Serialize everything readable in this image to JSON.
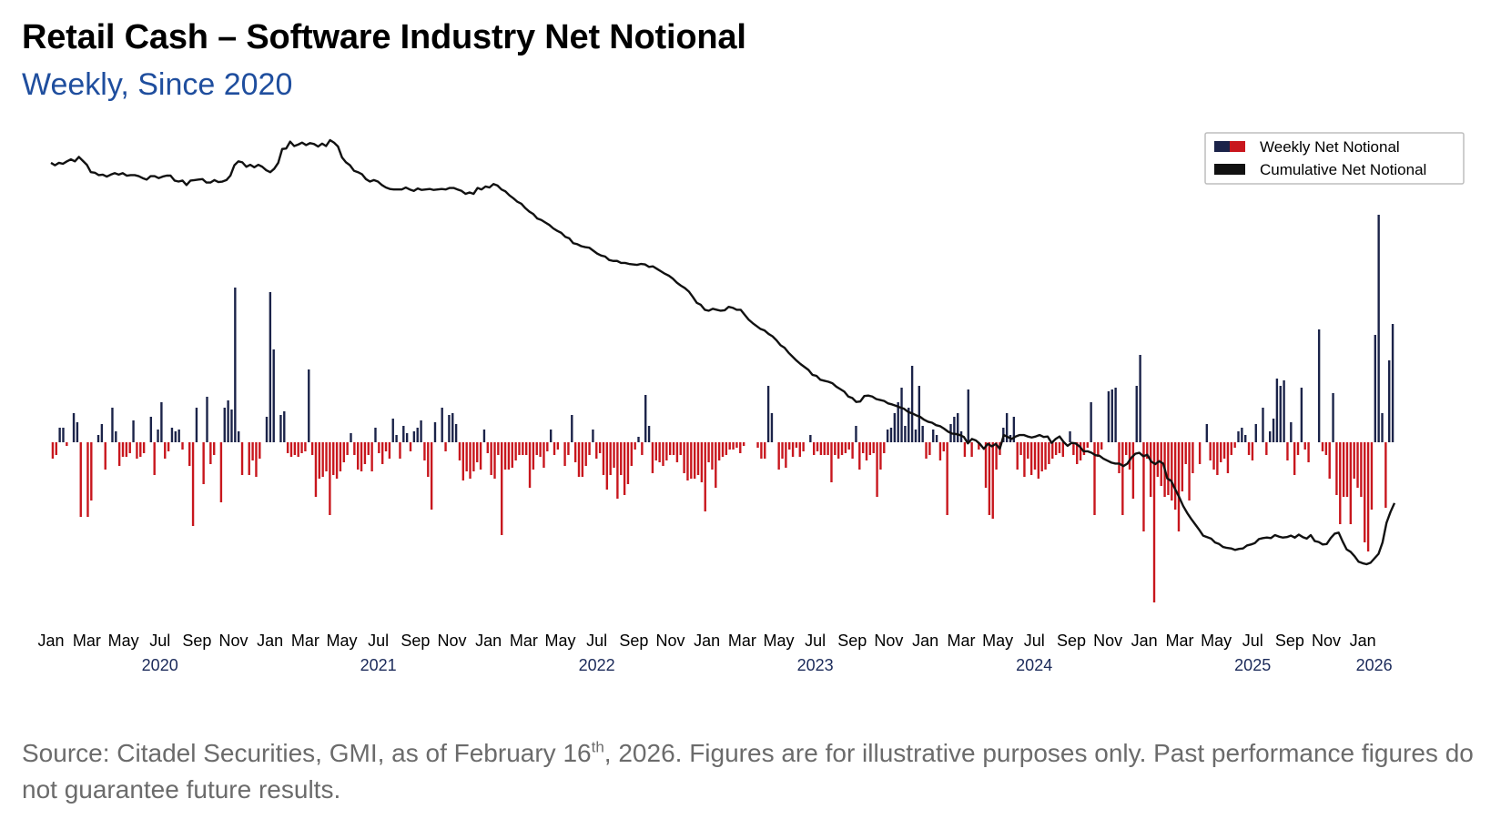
{
  "title": "Retail Cash – Software Industry Net Notional",
  "subtitle": "Weekly, Since 2020",
  "source": {
    "part1": "Source: Citadel Securities, GMI, as of February 16",
    "superscript": "th",
    "part2": ", 2026. Figures are for illustrative purposes only. Past performance figures do not guarantee future results."
  },
  "colors": {
    "positive_bar": "#1b2349",
    "negative_bar": "#c8161d",
    "cumulative_line": "#111111",
    "subtitle": "#1f4e9e"
  },
  "chart_data": {
    "type": "bar",
    "overlay": "line",
    "x_range": [
      "2020-01-01",
      "2026-02-23"
    ],
    "x_tick_labels": [
      {
        "date": "2020-01-01",
        "label": "Jan"
      },
      {
        "date": "2020-03-01",
        "label": "Mar"
      },
      {
        "date": "2020-05-01",
        "label": "May"
      },
      {
        "date": "2020-07-01",
        "label": "Jul"
      },
      {
        "date": "2020-09-01",
        "label": "Sep"
      },
      {
        "date": "2020-11-01",
        "label": "Nov"
      },
      {
        "date": "2021-01-01",
        "label": "Jan"
      },
      {
        "date": "2021-03-01",
        "label": "Mar"
      },
      {
        "date": "2021-05-01",
        "label": "May"
      },
      {
        "date": "2021-07-01",
        "label": "Jul"
      },
      {
        "date": "2021-09-01",
        "label": "Sep"
      },
      {
        "date": "2021-11-01",
        "label": "Nov"
      },
      {
        "date": "2022-01-01",
        "label": "Jan"
      },
      {
        "date": "2022-03-01",
        "label": "Mar"
      },
      {
        "date": "2022-05-01",
        "label": "May"
      },
      {
        "date": "2022-07-01",
        "label": "Jul"
      },
      {
        "date": "2022-09-01",
        "label": "Sep"
      },
      {
        "date": "2022-11-01",
        "label": "Nov"
      },
      {
        "date": "2023-01-01",
        "label": "Jan"
      },
      {
        "date": "2023-03-01",
        "label": "Mar"
      },
      {
        "date": "2023-05-01",
        "label": "May"
      },
      {
        "date": "2023-07-01",
        "label": "Jul"
      },
      {
        "date": "2023-09-01",
        "label": "Sep"
      },
      {
        "date": "2023-11-01",
        "label": "Nov"
      },
      {
        "date": "2024-01-01",
        "label": "Jan"
      },
      {
        "date": "2024-03-01",
        "label": "Mar"
      },
      {
        "date": "2024-05-01",
        "label": "May"
      },
      {
        "date": "2024-07-01",
        "label": "Jul"
      },
      {
        "date": "2024-09-01",
        "label": "Sep"
      },
      {
        "date": "2024-11-01",
        "label": "Nov"
      },
      {
        "date": "2025-01-01",
        "label": "Jan"
      },
      {
        "date": "2025-03-01",
        "label": "Mar"
      },
      {
        "date": "2025-05-01",
        "label": "May"
      },
      {
        "date": "2025-07-01",
        "label": "Jul"
      },
      {
        "date": "2025-09-01",
        "label": "Sep"
      },
      {
        "date": "2025-11-01",
        "label": "Nov"
      },
      {
        "date": "2026-01-01",
        "label": "Jan"
      }
    ],
    "year_labels": [
      {
        "date": "2020-07-01",
        "label": "2020"
      },
      {
        "date": "2021-07-01",
        "label": "2021"
      },
      {
        "date": "2022-07-01",
        "label": "2022"
      },
      {
        "date": "2023-07-01",
        "label": "2023"
      },
      {
        "date": "2024-07-01",
        "label": "2024"
      },
      {
        "date": "2025-07-01",
        "label": "2025"
      },
      {
        "date": "2026-01-20",
        "label": "2026"
      }
    ],
    "y_axis_shown": false,
    "grid": false,
    "legend_position": "top-right",
    "series": [
      {
        "name": "Weekly Net Notional",
        "type": "bar",
        "values": [
          -18,
          -14,
          16,
          16,
          -4,
          0,
          32,
          22,
          -82,
          0,
          -82,
          -64,
          0,
          8,
          20,
          -30,
          0,
          38,
          12,
          -26,
          -16,
          -16,
          -12,
          24,
          -18,
          -16,
          -12,
          0,
          28,
          -36,
          14,
          44,
          -18,
          -10,
          16,
          12,
          14,
          -8,
          0,
          -26,
          -92,
          38,
          0,
          -46,
          50,
          -24,
          -14,
          0,
          -66,
          38,
          46,
          36,
          170,
          12,
          -36,
          0,
          -36,
          -20,
          -38,
          -18,
          0,
          28,
          165,
          102,
          0,
          30,
          34,
          -12,
          -16,
          -14,
          -16,
          -12,
          -10,
          80,
          -14,
          -60,
          -40,
          -38,
          -32,
          -80,
          -36,
          -40,
          -32,
          -22,
          -14,
          10,
          -14,
          -30,
          -32,
          -24,
          -14,
          -32,
          16,
          -12,
          -24,
          -10,
          -18,
          26,
          8,
          -18,
          18,
          10,
          -10,
          12,
          16,
          24,
          -20,
          -38,
          -74,
          22,
          0,
          38,
          -10,
          30,
          32,
          20,
          -20,
          -42,
          -32,
          -40,
          -32,
          -22,
          -30,
          14,
          -12,
          -36,
          -40,
          -14,
          -102,
          -30,
          -30,
          -28,
          -20,
          -14,
          -14,
          -14,
          -50,
          -30,
          -14,
          -16,
          -28,
          -10,
          14,
          -14,
          -8,
          0,
          -26,
          -14,
          30,
          -22,
          -38,
          -38,
          -26,
          -14,
          14,
          -18,
          -12,
          -36,
          -52,
          -36,
          -28,
          -62,
          -36,
          -58,
          -46,
          -26,
          -8,
          6,
          -14,
          52,
          18,
          -34,
          -20,
          -22,
          -26,
          -20,
          -14,
          -14,
          -22,
          -14,
          -34,
          -42,
          -40,
          -40,
          -36,
          -44,
          -76,
          -22,
          -30,
          -50,
          -20,
          -16,
          -14,
          -8,
          -8,
          -6,
          -12,
          -4,
          0,
          0,
          0,
          -6,
          -18,
          -18,
          62,
          32,
          0,
          -30,
          -18,
          -28,
          -8,
          -16,
          -6,
          -16,
          -10,
          0,
          8,
          -14,
          -10,
          -14,
          -14,
          -14,
          -44,
          -14,
          -18,
          -14,
          -12,
          -8,
          -18,
          18,
          -30,
          -12,
          -20,
          -14,
          -12,
          -60,
          -30,
          -12,
          14,
          16,
          32,
          44,
          60,
          18,
          38,
          84,
          14,
          62,
          18,
          -18,
          -14,
          14,
          8,
          -20,
          -10,
          -80,
          20,
          28,
          32,
          12,
          -16,
          58,
          -16,
          0,
          -8,
          0,
          -50,
          -80,
          -84,
          -30,
          -14,
          16,
          32,
          8,
          28,
          -30,
          -14,
          -38,
          -18,
          -36,
          -30,
          -40,
          -32,
          -30,
          -24,
          -18,
          -14,
          -12,
          -16,
          0,
          12,
          -14,
          -24,
          -20,
          -14,
          -6,
          44,
          -80,
          -16,
          -8,
          0,
          56,
          58,
          60,
          -34,
          -80,
          -14,
          -30,
          -62,
          62,
          96,
          -98,
          -18,
          -60,
          -176,
          -38,
          -48,
          -60,
          -58,
          -64,
          -74,
          -98,
          -54,
          -24,
          -64,
          -34,
          0,
          -24,
          0,
          20,
          -20,
          -30,
          -36,
          -22,
          -18,
          -34,
          -14,
          -6,
          12,
          16,
          8,
          -14,
          -20,
          20,
          0,
          38,
          -14,
          12,
          26,
          70,
          62,
          68,
          -20,
          22,
          -36,
          -14,
          60,
          -8,
          -22,
          0,
          0,
          124,
          -10,
          -14,
          -40,
          54,
          -58,
          -90,
          -60,
          -60,
          -90,
          -40,
          -50,
          -60,
          -110,
          -120,
          -74,
          118,
          250,
          32,
          -72,
          90,
          130
        ]
      },
      {
        "name": "Cumulative Net Notional",
        "type": "line",
        "values": [
          1000,
          995,
          1000,
          998,
          1003,
          1007,
          1003,
          1012,
          1004,
          996,
          981,
          980,
          975,
          976,
          972,
          976,
          979,
          976,
          979,
          974,
          975,
          975,
          973,
          969,
          966,
          973,
          973,
          969,
          972,
          974,
          974,
          964,
          962,
          964,
          955,
          964,
          965,
          966,
          967,
          960,
          960,
          965,
          961,
          962,
          965,
          974,
          995,
          1003,
          1001,
          992,
          996,
          991,
          996,
          992,
          985,
          981,
          988,
          1000,
          1028,
          1029,
          1043,
          1034,
          1037,
          1041,
          1036,
          1040,
          1038,
          1033,
          1039,
          1034,
          1046,
          1041,
          1033,
          1011,
          1001,
          995,
          984,
          981,
          977,
          967,
          962,
          965,
          962,
          955,
          950,
          947,
          946,
          946,
          946,
          950,
          946,
          943,
          948,
          945,
          946,
          947,
          945,
          946,
          947,
          946,
          949,
          949,
          946,
          943,
          937,
          940,
          937,
          949,
          946,
          952,
          950,
          957,
          954,
          946,
          942,
          934,
          928,
          921,
          917,
          908,
          901,
          896,
          887,
          884,
          879,
          874,
          867,
          862,
          858,
          850,
          847,
          837,
          835,
          831,
          829,
          828,
          822,
          816,
          812,
          810,
          803,
          801,
          801,
          797,
          797,
          795,
          794,
          793,
          795,
          794,
          789,
          790,
          785,
          780,
          775,
          771,
          765,
          757,
          751,
          746,
          739,
          728,
          716,
          712,
          702,
          700,
          704,
          702,
          700,
          701,
          708,
          706,
          702,
          702,
          692,
          682,
          675,
          669,
          663,
          660,
          653,
          648,
          640,
          630,
          625,
          615,
          607,
          599,
          592,
          586,
          580,
          570,
          568,
          560,
          558,
          556,
          553,
          546,
          541,
          536,
          526,
          523,
          515,
          516,
          527,
          528,
          526,
          521,
          519,
          517,
          512,
          510,
          507,
          504,
          501,
          495,
          492,
          488,
          485,
          479,
          475,
          473,
          468,
          466,
          461,
          455,
          451,
          450,
          448,
          444,
          431,
          440,
          437,
          430,
          420,
          430,
          425,
          430,
          420,
          448,
          444,
          440,
          445,
          448,
          448,
          445,
          443,
          445,
          448,
          444,
          445,
          432,
          440,
          445,
          434,
          426,
          432,
          431,
          425,
          415,
          415,
          412,
          407,
          406,
          400,
          396,
          392,
          390,
          390,
          385,
          390,
          402,
          410,
          412,
          405,
          408,
          394,
          389,
          395,
          390,
          360,
          355,
          338,
          322,
          304,
          290,
          278,
          267,
          256,
          244,
          241,
          238,
          230,
          227,
          221,
          219,
          218,
          215,
          217,
          218,
          224,
          226,
          229,
          237,
          239,
          240,
          239,
          245,
          242,
          240,
          241,
          244,
          240,
          246,
          241,
          238,
          245,
          233,
          231,
          226,
          227,
          239,
          248,
          250,
          232,
          216,
          211,
          202,
          191,
          188,
          186,
          189,
          198,
          207,
          230,
          270,
          292,
          310
        ]
      }
    ]
  },
  "legend": {
    "items": [
      {
        "label": "Weekly Net Notional",
        "swatch": "bicolor"
      },
      {
        "label": "Cumulative Net Notional",
        "swatch": "black"
      }
    ]
  }
}
